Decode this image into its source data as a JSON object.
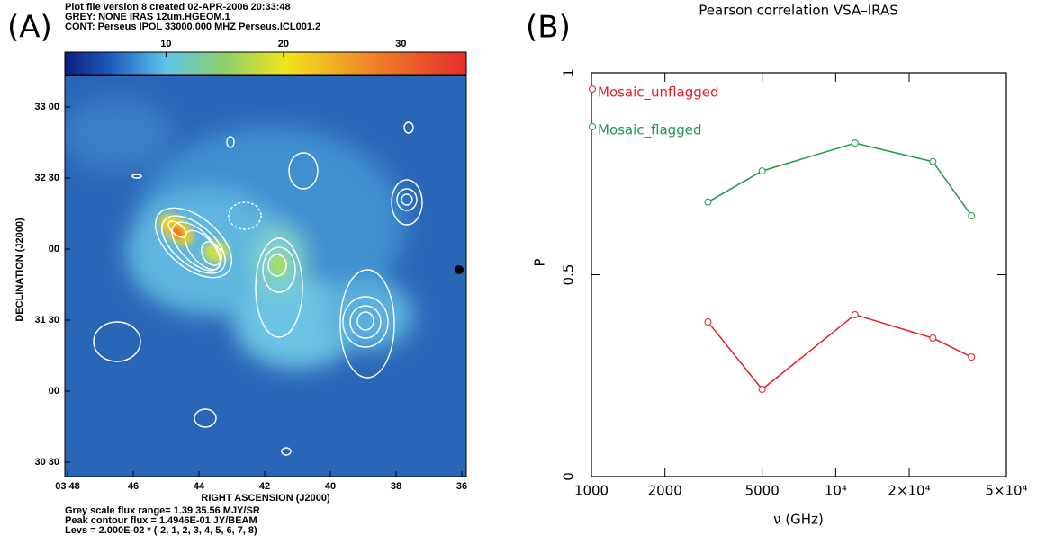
{
  "panel_a": {
    "label": "(A)",
    "header": [
      "Plot file version 8  created 02-APR-2006 20:33:48",
      "GREY: NONE  IRAS 12um.HGEOM.1",
      "CONT: Perseus  IPOL  33000.000 MHZ  Perseus.ICL001.2"
    ],
    "colorbar": {
      "lim": [
        1.39,
        35.56
      ],
      "ticks": [
        10,
        20,
        30
      ]
    },
    "ytick_labels": [
      "33 00",
      "32 30",
      "00",
      "31 30",
      "00",
      "30 30"
    ],
    "xtick_labels": [
      "03 48",
      "46",
      "44",
      "42",
      "40",
      "38",
      "36"
    ],
    "ylabel": "DECLINATION (J2000)",
    "xlabel": "RIGHT ASCENSION (J2000)",
    "footer": [
      "Grey scale flux range= 1.39 35.56 MJY/SR",
      "Peak contour flux =  1.4946E-01 JY/BEAM",
      "Levs = 2.000E-02 * (-2, 1, 2, 3, 4, 5, 6, 7, 8)"
    ]
  },
  "chart_data": {
    "type": "line",
    "panel_label": "(B)",
    "title": "Pearson correlation VSA–IRAS",
    "xlabel": "ν (GHz)",
    "ylabel": "P",
    "xlog": true,
    "x": [
      3000,
      5000,
      12000,
      25000,
      36000
    ],
    "series": [
      {
        "name": "Mosaic_unflagged",
        "color": "#e3202a",
        "values": [
          0.383,
          0.216,
          0.401,
          0.343,
          0.296
        ]
      },
      {
        "name": "Mosaic_flagged",
        "color": "#1e9a4c",
        "values": [
          0.68,
          0.757,
          0.826,
          0.78,
          0.646
        ]
      }
    ],
    "xlim": [
      1000,
      50000
    ],
    "xticks": [
      1000,
      2000,
      5000,
      {
        "value": 10000,
        "label": "10⁴"
      },
      {
        "value": 20000,
        "label": "2×10⁴"
      },
      {
        "value": 50000,
        "label": "5×10⁴"
      }
    ],
    "ylim": [
      0,
      1
    ],
    "yticks": [
      0,
      0.5,
      1
    ],
    "legend": "upper left",
    "marker": "circle"
  }
}
